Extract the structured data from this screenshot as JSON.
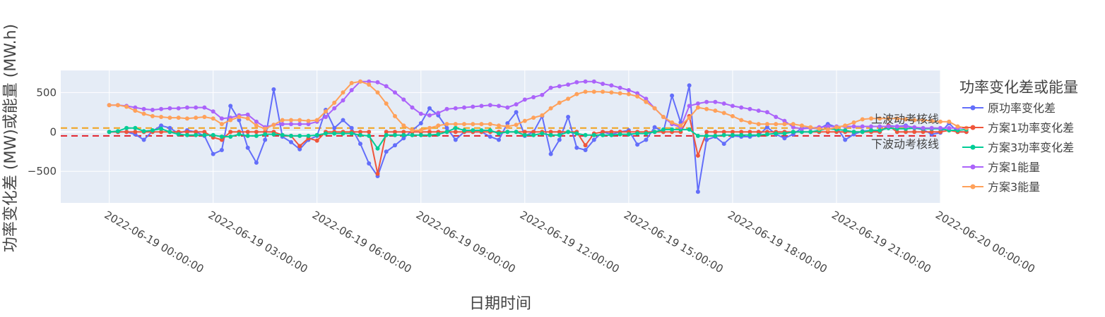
{
  "chart_data": {
    "type": "line",
    "xlabel": "日期时间",
    "ylabel": "功率变化差 (MW)或能量 (MW.h)",
    "xlim": [
      "2022-06-18 22:36:00",
      "2022-06-20 00:00:00"
    ],
    "ylim": [
      -900,
      780
    ],
    "x_ticks": [
      "2022-06-19 00:00:00",
      "2022-06-19 03:00:00",
      "2022-06-19 06:00:00",
      "2022-06-19 09:00:00",
      "2022-06-19 12:00:00",
      "2022-06-19 15:00:00",
      "2022-06-19 18:00:00",
      "2022-06-19 21:00:00",
      "2022-06-20 00:00:00"
    ],
    "y_ticks": [
      -500,
      0,
      500
    ],
    "y_tick_labels": [
      "−500",
      "0",
      "500"
    ],
    "x_start": "2022-06-19 00:00:00",
    "x_step_minutes": 15,
    "legend": {
      "title": "功率变化差或能量",
      "position": "right"
    },
    "grid": true,
    "series": [
      {
        "name": "原功率变化差",
        "color": "#636efa",
        "values": [
          0,
          0,
          0,
          -30,
          -100,
          10,
          80,
          50,
          -20,
          20,
          0,
          -50,
          -280,
          -230,
          330,
          150,
          -200,
          -390,
          -100,
          540,
          -60,
          -130,
          -220,
          -100,
          -50,
          280,
          50,
          150,
          50,
          -150,
          -400,
          -560,
          -250,
          -170,
          -80,
          20,
          110,
          300,
          210,
          50,
          -100,
          0,
          0,
          0,
          -60,
          -100,
          110,
          250,
          -50,
          0,
          200,
          -280,
          -100,
          190,
          -200,
          -230,
          -100,
          0,
          -30,
          0,
          20,
          -160,
          -100,
          60,
          0,
          460,
          120,
          590,
          -760,
          -100,
          -60,
          -150,
          -50,
          -60,
          -60,
          -40,
          60,
          -30,
          -80,
          -30,
          50,
          50,
          40,
          100,
          60,
          -100,
          -30,
          10,
          20,
          0,
          80,
          70,
          80,
          50,
          30,
          -30,
          -10,
          110,
          0,
          0
        ]
      },
      {
        "name": "方案1功率变化差",
        "color": "#ef553b",
        "values": [
          0,
          0,
          0,
          0,
          0,
          0,
          0,
          0,
          0,
          0,
          0,
          0,
          -70,
          -100,
          0,
          0,
          0,
          0,
          0,
          0,
          -40,
          -50,
          -180,
          -80,
          -110,
          0,
          0,
          0,
          0,
          0,
          0,
          -530,
          0,
          0,
          0,
          0,
          0,
          0,
          0,
          0,
          0,
          0,
          0,
          0,
          0,
          0,
          0,
          0,
          0,
          0,
          0,
          0,
          0,
          0,
          0,
          -170,
          -20,
          0,
          0,
          0,
          0,
          0,
          0,
          0,
          0,
          0,
          0,
          200,
          -300,
          0,
          0,
          0,
          0,
          0,
          0,
          0,
          0,
          0,
          0,
          0,
          0,
          0,
          0,
          0,
          0,
          0,
          0,
          0,
          0,
          0,
          80,
          0,
          0,
          0,
          0,
          0,
          0,
          20,
          0,
          0
        ]
      },
      {
        "name": "方案3功率变化差",
        "color": "#00cc96",
        "values": [
          0,
          10,
          50,
          50,
          10,
          20,
          40,
          0,
          -30,
          -40,
          -40,
          -40,
          -40,
          -60,
          -60,
          -30,
          -50,
          -50,
          -30,
          -30,
          -40,
          -50,
          -50,
          -50,
          -40,
          -20,
          -20,
          -20,
          -20,
          -40,
          -50,
          -210,
          -40,
          -40,
          -40,
          -40,
          -40,
          -40,
          -30,
          0,
          50,
          20,
          20,
          20,
          20,
          -20,
          0,
          0,
          -40,
          -40,
          -20,
          -40,
          -40,
          0,
          -20,
          -40,
          -40,
          -40,
          -40,
          -30,
          -30,
          -20,
          -20,
          0,
          30,
          30,
          30,
          30,
          -50,
          -50,
          -50,
          -40,
          -40,
          -40,
          -40,
          -40,
          -30,
          -20,
          -20,
          0,
          0,
          0,
          20,
          40,
          30,
          20,
          0,
          0,
          20,
          20,
          50,
          40,
          40,
          50,
          40,
          40,
          40,
          20,
          20,
          30
        ]
      },
      {
        "name": "方案1能量",
        "color": "#ab63fa",
        "values": [
          340,
          340,
          330,
          310,
          290,
          280,
          290,
          300,
          300,
          310,
          310,
          310,
          260,
          170,
          180,
          210,
          220,
          130,
          60,
          90,
          100,
          100,
          100,
          100,
          130,
          190,
          300,
          400,
          530,
          640,
          640,
          630,
          580,
          500,
          410,
          310,
          230,
          210,
          240,
          290,
          300,
          310,
          320,
          330,
          340,
          330,
          310,
          350,
          410,
          440,
          470,
          560,
          580,
          600,
          630,
          640,
          640,
          610,
          590,
          560,
          530,
          490,
          420,
          300,
          190,
          100,
          60,
          330,
          360,
          380,
          380,
          360,
          330,
          310,
          290,
          270,
          250,
          190,
          140,
          60,
          40,
          50,
          60,
          70,
          70,
          70,
          70,
          70,
          70,
          70,
          70,
          70,
          70,
          60,
          50,
          50,
          50,
          50,
          50,
          50
        ]
      },
      {
        "name": "方案3能量",
        "color": "#ffa15a",
        "values": [
          340,
          340,
          320,
          270,
          230,
          200,
          190,
          180,
          180,
          170,
          180,
          190,
          170,
          100,
          150,
          190,
          170,
          80,
          40,
          90,
          150,
          150,
          150,
          140,
          150,
          260,
          370,
          500,
          620,
          640,
          600,
          500,
          360,
          200,
          80,
          20,
          20,
          50,
          80,
          100,
          100,
          100,
          100,
          100,
          100,
          80,
          70,
          90,
          140,
          180,
          210,
          300,
          370,
          420,
          480,
          510,
          510,
          510,
          500,
          490,
          480,
          450,
          380,
          300,
          190,
          120,
          80,
          180,
          310,
          290,
          270,
          240,
          200,
          150,
          120,
          100,
          100,
          100,
          100,
          100,
          80,
          60,
          40,
          30,
          60,
          80,
          120,
          160,
          170,
          170,
          170,
          170,
          160,
          150,
          150,
          140,
          130,
          130,
          70,
          50
        ]
      }
    ],
    "reference_lines": [
      {
        "label": "上波动考核线",
        "value": 50,
        "color": "#f2a11a",
        "style": "dashed"
      },
      {
        "label": "下波动考核线",
        "value": -50,
        "color": "#e4202a",
        "style": "dashed"
      }
    ]
  }
}
